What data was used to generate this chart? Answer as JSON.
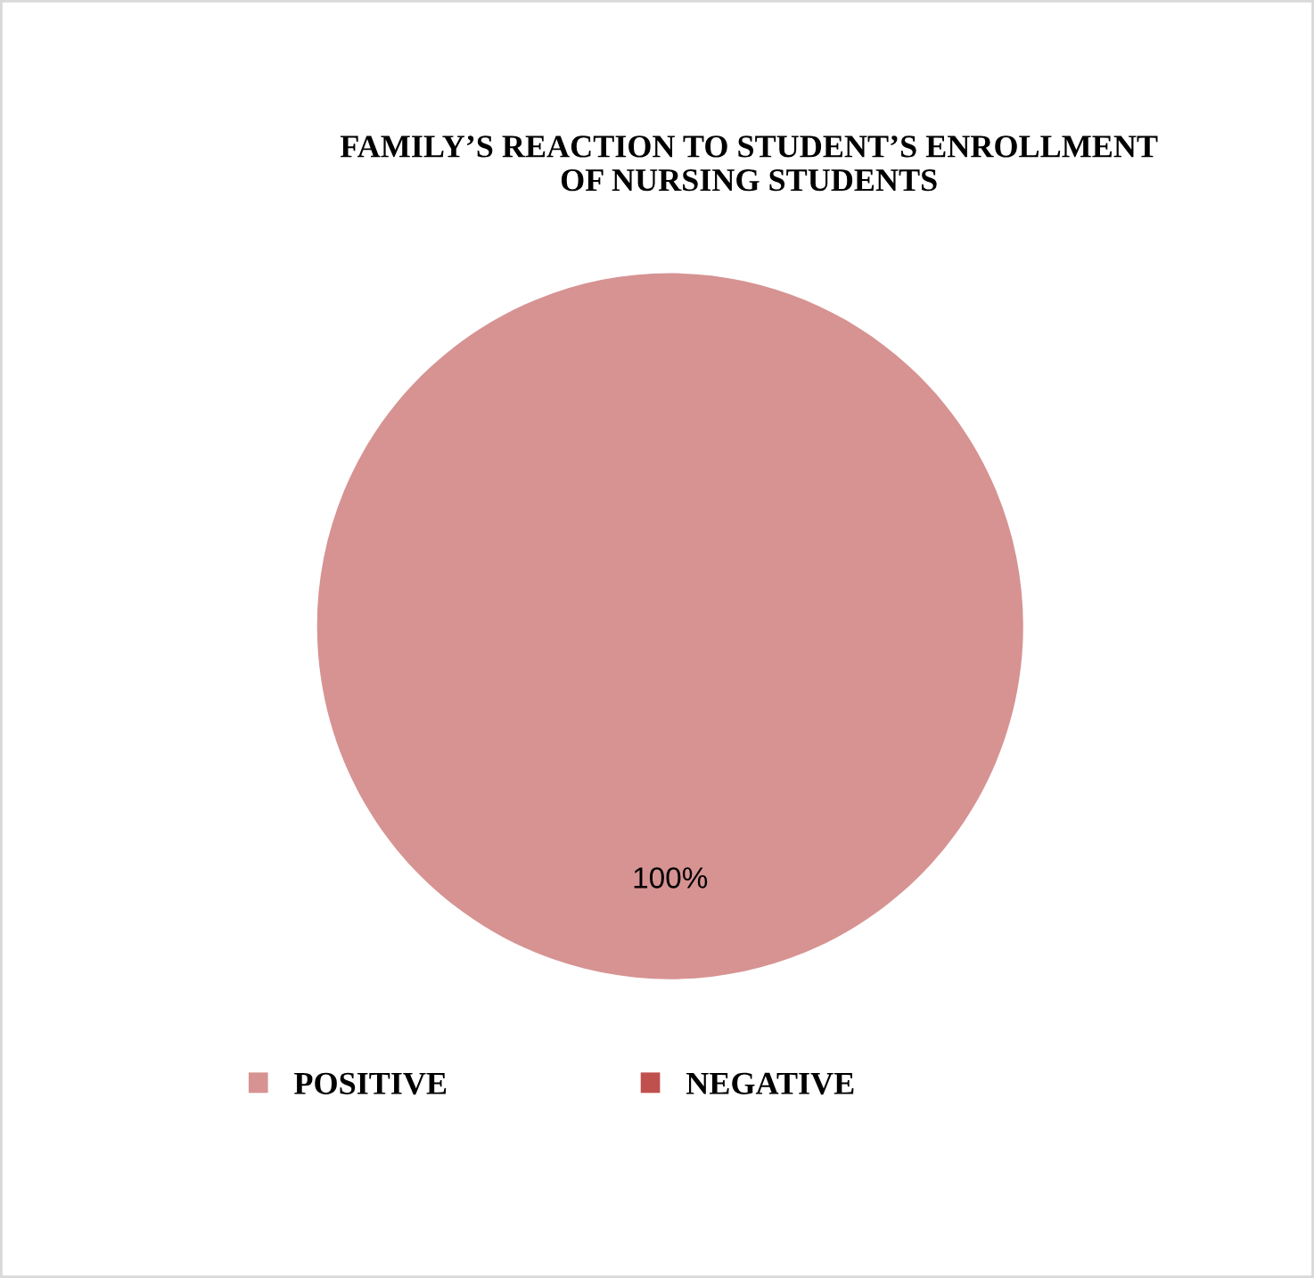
{
  "chart_data": {
    "type": "pie",
    "title": "FAMILY’S REACTION TO STUDENT’S ENROLLMENT\nOF NURSING STUDENTS",
    "categories": [
      "POSITIVE",
      "NEGATIVE"
    ],
    "values": [
      100,
      0
    ],
    "colors": [
      "#d69392",
      "#c0504d"
    ],
    "value_labels": [
      "100%",
      null
    ],
    "legend": "bottom"
  }
}
